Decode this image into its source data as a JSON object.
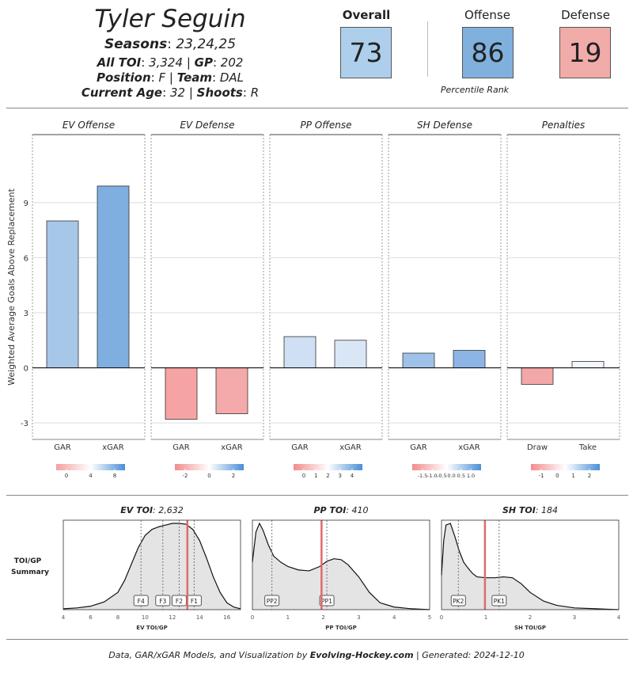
{
  "header": {
    "player_name": "Tyler Seguin",
    "seasons_label": "Seasons",
    "seasons_value": "23,24,25",
    "toi_label": "All TOI",
    "toi_value": "3,324",
    "gp_label": "GP",
    "gp_value": "202",
    "position_label": "Position",
    "position_value": "F",
    "team_label": "Team",
    "team_value": "DAL",
    "age_label": "Current Age",
    "age_value": "32",
    "shoots_label": "Shoots",
    "shoots_value": "R",
    "separator": "|"
  },
  "scores": {
    "overall_label": "Overall",
    "overall_value": "73",
    "offense_label": "Offense",
    "offense_value": "86",
    "defense_label": "Defense",
    "defense_value": "19",
    "percentile_caption": "Percentile Rank",
    "colors": {
      "overall": "#aecfeb",
      "offense": "#80b1de",
      "defense": "#f1acaa"
    }
  },
  "chart_data": [
    {
      "type": "bar",
      "ylabel": "Weighted Average Goals Above Replacement",
      "ylim": [
        -3.9,
        12.7
      ],
      "yticks": [
        "-3",
        "0",
        "3",
        "6",
        "9"
      ],
      "grid": true,
      "panels": [
        {
          "title": "EV Offense",
          "categories": [
            "GAR",
            "xGAR"
          ],
          "values": [
            8.0,
            9.9
          ],
          "colors": [
            "#a7c7e8",
            "#7eafe0"
          ],
          "scale": {
            "ticks": [
              "0",
              "4",
              "8"
            ],
            "gradient": [
              "#f4a0a0",
              "#ffffff",
              "#4a8fd6"
            ]
          }
        },
        {
          "title": "EV Defense",
          "categories": [
            "GAR",
            "xGAR"
          ],
          "values": [
            -2.8,
            -2.5
          ],
          "colors": [
            "#f6a3a3",
            "#f4aaaa"
          ],
          "scale": {
            "ticks": [
              "-2",
              "0",
              "2"
            ],
            "gradient": [
              "#f28c8c",
              "#ffffff",
              "#4a8fd6"
            ]
          }
        },
        {
          "title": "PP Offense",
          "categories": [
            "GAR",
            "xGAR"
          ],
          "values": [
            1.7,
            1.5
          ],
          "colors": [
            "#cfe0f4",
            "#d8e6f6"
          ],
          "scale": {
            "ticks": [
              "0",
              "1",
              "2",
              "3",
              "4"
            ],
            "gradient": [
              "#f28c8c",
              "#ffffff",
              "#4a8fd6"
            ]
          }
        },
        {
          "title": "SH Defense",
          "categories": [
            "GAR",
            "xGAR"
          ],
          "values": [
            0.8,
            0.95
          ],
          "colors": [
            "#9fc1e9",
            "#8cb5e6"
          ],
          "scale": {
            "ticks": [
              "-1.5",
              "-1.0",
              "-0.5",
              "0.0",
              "0.5",
              "1.0"
            ],
            "gradient": [
              "#f28c8c",
              "#ffffff",
              "#4a8fd6"
            ]
          }
        },
        {
          "title": "Penalties",
          "categories": [
            "Draw",
            "Take"
          ],
          "values": [
            -0.9,
            0.35
          ],
          "colors": [
            "#f4a7a7",
            "#f4f7fc"
          ],
          "scale": {
            "ticks": [
              "-1",
              "0",
              "1",
              "2"
            ],
            "gradient": [
              "#f28c8c",
              "#ffffff",
              "#4a8fd6"
            ]
          }
        }
      ]
    },
    {
      "type": "area",
      "row_label_1": "TOI/GP",
      "row_label_2": "Summary",
      "panels": [
        {
          "title_label": "EV TOI",
          "title_value": "2,632",
          "xlabel": "EV TOI/GP",
          "xlim": [
            4,
            17
          ],
          "xticks": [
            "4",
            "6",
            "8",
            "10",
            "12",
            "14",
            "16"
          ],
          "curve_x": [
            4,
            5,
            6,
            7,
            8,
            8.5,
            9,
            9.5,
            10,
            10.5,
            11,
            11.5,
            12,
            12.5,
            13,
            13.5,
            14,
            14.5,
            15,
            15.5,
            16,
            16.5,
            17
          ],
          "curve_y": [
            0.01,
            0.02,
            0.04,
            0.09,
            0.2,
            0.34,
            0.53,
            0.72,
            0.86,
            0.93,
            0.96,
            0.98,
            1.0,
            1.0,
            0.99,
            0.93,
            0.8,
            0.6,
            0.38,
            0.2,
            0.08,
            0.03,
            0.01
          ],
          "player_value": 13.1,
          "markers": [
            {
              "label": "F4",
              "x": 9.7
            },
            {
              "label": "F3",
              "x": 11.3
            },
            {
              "label": "F2",
              "x": 12.5
            },
            {
              "label": "F1",
              "x": 13.6
            }
          ]
        },
        {
          "title_label": "PP TOI",
          "title_value": "410",
          "xlabel": "PP TOI/GP",
          "xlim": [
            0,
            5
          ],
          "xticks": [
            "0",
            "1",
            "2",
            "3",
            "4",
            "5"
          ],
          "curve_x": [
            0,
            0.1,
            0.2,
            0.3,
            0.45,
            0.6,
            0.8,
            1.0,
            1.3,
            1.6,
            1.9,
            2.1,
            2.3,
            2.5,
            2.7,
            3.0,
            3.3,
            3.6,
            4.0,
            4.5,
            5.0
          ],
          "curve_y": [
            0.55,
            0.9,
            1.0,
            0.92,
            0.75,
            0.62,
            0.55,
            0.5,
            0.46,
            0.45,
            0.5,
            0.56,
            0.59,
            0.58,
            0.52,
            0.38,
            0.2,
            0.08,
            0.03,
            0.01,
            0.0
          ],
          "player_value": 1.95,
          "markers": [
            {
              "label": "PP2",
              "x": 0.55
            },
            {
              "label": "PP1",
              "x": 2.1
            }
          ]
        },
        {
          "title_label": "SH TOI",
          "title_value": "184",
          "xlabel": "SH TOI/GP",
          "xlim": [
            0,
            4
          ],
          "xticks": [
            "0",
            "1",
            "2",
            "3",
            "4"
          ],
          "curve_x": [
            0,
            0.05,
            0.1,
            0.2,
            0.3,
            0.4,
            0.5,
            0.6,
            0.7,
            0.8,
            1.0,
            1.2,
            1.4,
            1.6,
            1.8,
            2.0,
            2.3,
            2.6,
            3.0,
            3.5,
            4.0
          ],
          "curve_y": [
            0.4,
            0.8,
            0.98,
            1.0,
            0.85,
            0.68,
            0.55,
            0.48,
            0.42,
            0.38,
            0.37,
            0.37,
            0.38,
            0.37,
            0.3,
            0.2,
            0.1,
            0.05,
            0.02,
            0.01,
            0.0
          ],
          "player_value": 0.98,
          "markers": [
            {
              "label": "PK2",
              "x": 0.38
            },
            {
              "label": "PK1",
              "x": 1.3
            }
          ]
        }
      ]
    }
  ],
  "footer": {
    "prefix": "Data, GAR/xGAR Models, and Visualization by ",
    "brand": "Evolving-Hockey.com",
    "suffix": " | Generated: 2024-12-10"
  }
}
